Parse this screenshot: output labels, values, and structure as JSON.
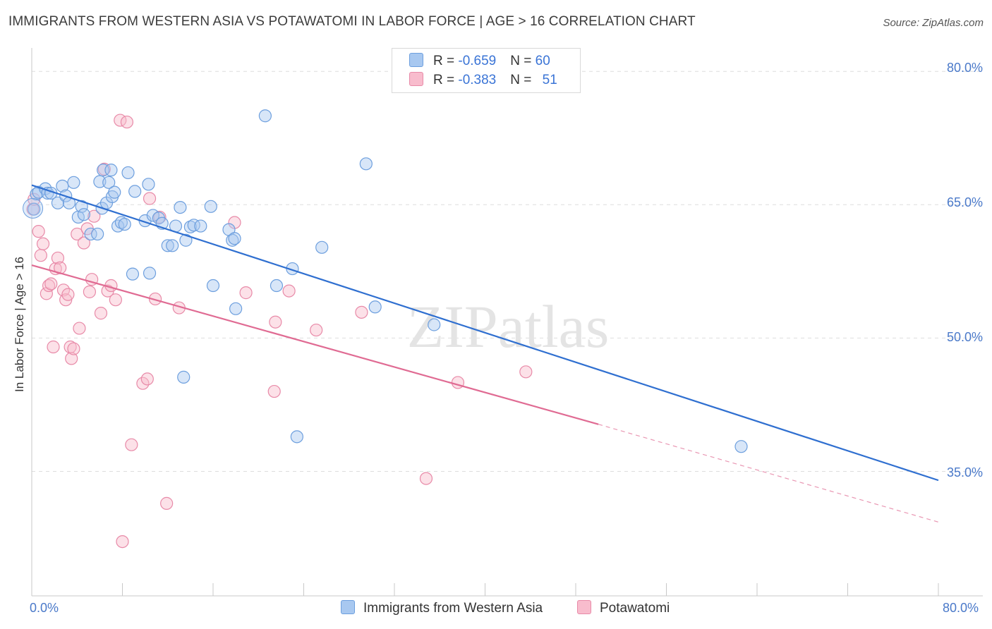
{
  "title": "IMMIGRANTS FROM WESTERN ASIA VS POTAWATOMI IN LABOR FORCE | AGE > 16 CORRELATION CHART",
  "source": "Source: ZipAtlas.com",
  "watermark": "ZIPatlas",
  "legend": {
    "rows": [
      {
        "r_label": "R = ",
        "r_value": "-0.659",
        "n_label": "N = ",
        "n_value": "60"
      },
      {
        "r_label": "R = ",
        "r_value": "-0.383",
        "n_label": "N = ",
        "n_value": "51"
      }
    ]
  },
  "bottom_legend": {
    "series1": "Immigrants from Western Asia",
    "series2": "Potawatomi"
  },
  "axis": {
    "y_title": "In Labor Force | Age > 16",
    "x_min_label": "0.0%",
    "x_max_label": "80.0%",
    "y_ticks": [
      "80.0%",
      "65.0%",
      "50.0%",
      "35.0%"
    ]
  },
  "colors": {
    "blue_fill": "#a8c8f0",
    "blue_stroke": "#6d9fde",
    "blue_line": "#2f6fd0",
    "pink_fill": "#f8bccd",
    "pink_stroke": "#e88aa8",
    "pink_line": "#e06b93",
    "grid": "#dddddd",
    "tick_label": "#4a79c9"
  },
  "chart_data": {
    "type": "scatter",
    "xlim": [
      0,
      80
    ],
    "ylim": [
      21,
      82
    ],
    "y_gridlines": [
      80,
      65,
      50,
      35
    ],
    "series": [
      {
        "name": "Immigrants from Western Asia",
        "R": -0.659,
        "N": 60,
        "trend": {
          "x0": 0,
          "y0": 67.2,
          "x1": 80,
          "y1": 34
        },
        "points": [
          [
            0.2,
            64.5
          ],
          [
            0.4,
            66.2
          ],
          [
            0.6,
            66.4
          ],
          [
            1.2,
            66.8
          ],
          [
            1.4,
            66.3
          ],
          [
            1.7,
            66.3
          ],
          [
            2.3,
            65.2
          ],
          [
            2.7,
            67.1
          ],
          [
            3.0,
            66.0
          ],
          [
            3.3,
            65.2
          ],
          [
            3.7,
            67.5
          ],
          [
            4.1,
            63.6
          ],
          [
            4.4,
            64.8
          ],
          [
            4.6,
            63.9
          ],
          [
            5.2,
            61.7
          ],
          [
            5.8,
            61.7
          ],
          [
            6.0,
            67.6
          ],
          [
            6.2,
            64.6
          ],
          [
            6.6,
            65.2
          ],
          [
            6.8,
            67.5
          ],
          [
            7.1,
            65.9
          ],
          [
            7.3,
            66.4
          ],
          [
            7.6,
            62.6
          ],
          [
            7.9,
            63.0
          ],
          [
            8.2,
            62.8
          ],
          [
            8.5,
            68.6
          ],
          [
            8.9,
            57.2
          ],
          [
            9.1,
            66.5
          ],
          [
            10.0,
            63.2
          ],
          [
            10.3,
            67.3
          ],
          [
            10.4,
            57.3
          ],
          [
            10.7,
            63.8
          ],
          [
            11.2,
            63.5
          ],
          [
            11.5,
            62.9
          ],
          [
            12.0,
            60.4
          ],
          [
            12.4,
            60.4
          ],
          [
            12.7,
            62.6
          ],
          [
            13.1,
            64.7
          ],
          [
            13.4,
            45.6
          ],
          [
            13.6,
            61.0
          ],
          [
            14.0,
            62.5
          ],
          [
            14.3,
            62.7
          ],
          [
            14.9,
            62.6
          ],
          [
            15.8,
            64.8
          ],
          [
            16.0,
            55.9
          ],
          [
            17.4,
            62.2
          ],
          [
            17.7,
            61.0
          ],
          [
            17.9,
            61.2
          ],
          [
            18.0,
            53.3
          ],
          [
            20.6,
            75.0
          ],
          [
            21.6,
            55.9
          ],
          [
            23.0,
            57.8
          ],
          [
            23.4,
            38.9
          ],
          [
            25.6,
            60.2
          ],
          [
            29.5,
            69.6
          ],
          [
            30.3,
            53.5
          ],
          [
            35.5,
            51.5
          ],
          [
            6.3,
            68.9
          ],
          [
            7.0,
            68.9
          ],
          [
            62.6,
            37.8
          ]
        ]
      },
      {
        "name": "Potawatomi",
        "R": -0.383,
        "N": 51,
        "trend": {
          "x0": 0,
          "y0": 58.2,
          "x1": 50,
          "y1": 40.3,
          "dash_to_x": 80,
          "dash_to_y": 29.3
        },
        "points": [
          [
            0.1,
            64.5
          ],
          [
            0.2,
            65.6
          ],
          [
            0.6,
            62.0
          ],
          [
            0.8,
            59.3
          ],
          [
            1.0,
            60.6
          ],
          [
            1.3,
            55.0
          ],
          [
            1.5,
            55.9
          ],
          [
            1.7,
            56.1
          ],
          [
            1.9,
            49.0
          ],
          [
            2.1,
            57.8
          ],
          [
            2.3,
            59.0
          ],
          [
            2.5,
            57.9
          ],
          [
            2.8,
            55.4
          ],
          [
            3.0,
            54.3
          ],
          [
            3.2,
            54.9
          ],
          [
            3.4,
            49.0
          ],
          [
            3.5,
            47.7
          ],
          [
            3.7,
            48.8
          ],
          [
            4.0,
            61.7
          ],
          [
            4.2,
            51.1
          ],
          [
            4.6,
            60.7
          ],
          [
            4.9,
            62.3
          ],
          [
            5.1,
            55.2
          ],
          [
            5.3,
            56.6
          ],
          [
            5.5,
            63.7
          ],
          [
            6.1,
            52.8
          ],
          [
            6.4,
            69.0
          ],
          [
            6.7,
            55.3
          ],
          [
            7.0,
            55.9
          ],
          [
            7.4,
            54.3
          ],
          [
            7.8,
            74.5
          ],
          [
            8.0,
            27.1
          ],
          [
            8.4,
            74.3
          ],
          [
            8.8,
            38.0
          ],
          [
            9.8,
            44.9
          ],
          [
            10.2,
            45.4
          ],
          [
            10.4,
            65.7
          ],
          [
            10.9,
            54.4
          ],
          [
            11.3,
            63.6
          ],
          [
            11.9,
            31.4
          ],
          [
            13.0,
            53.4
          ],
          [
            17.9,
            63.0
          ],
          [
            18.9,
            55.1
          ],
          [
            21.5,
            51.8
          ],
          [
            22.7,
            55.3
          ],
          [
            25.1,
            50.9
          ],
          [
            21.4,
            44.0
          ],
          [
            29.1,
            52.9
          ],
          [
            34.8,
            34.2
          ],
          [
            37.6,
            45.0
          ],
          [
            43.6,
            46.2
          ]
        ]
      }
    ]
  }
}
